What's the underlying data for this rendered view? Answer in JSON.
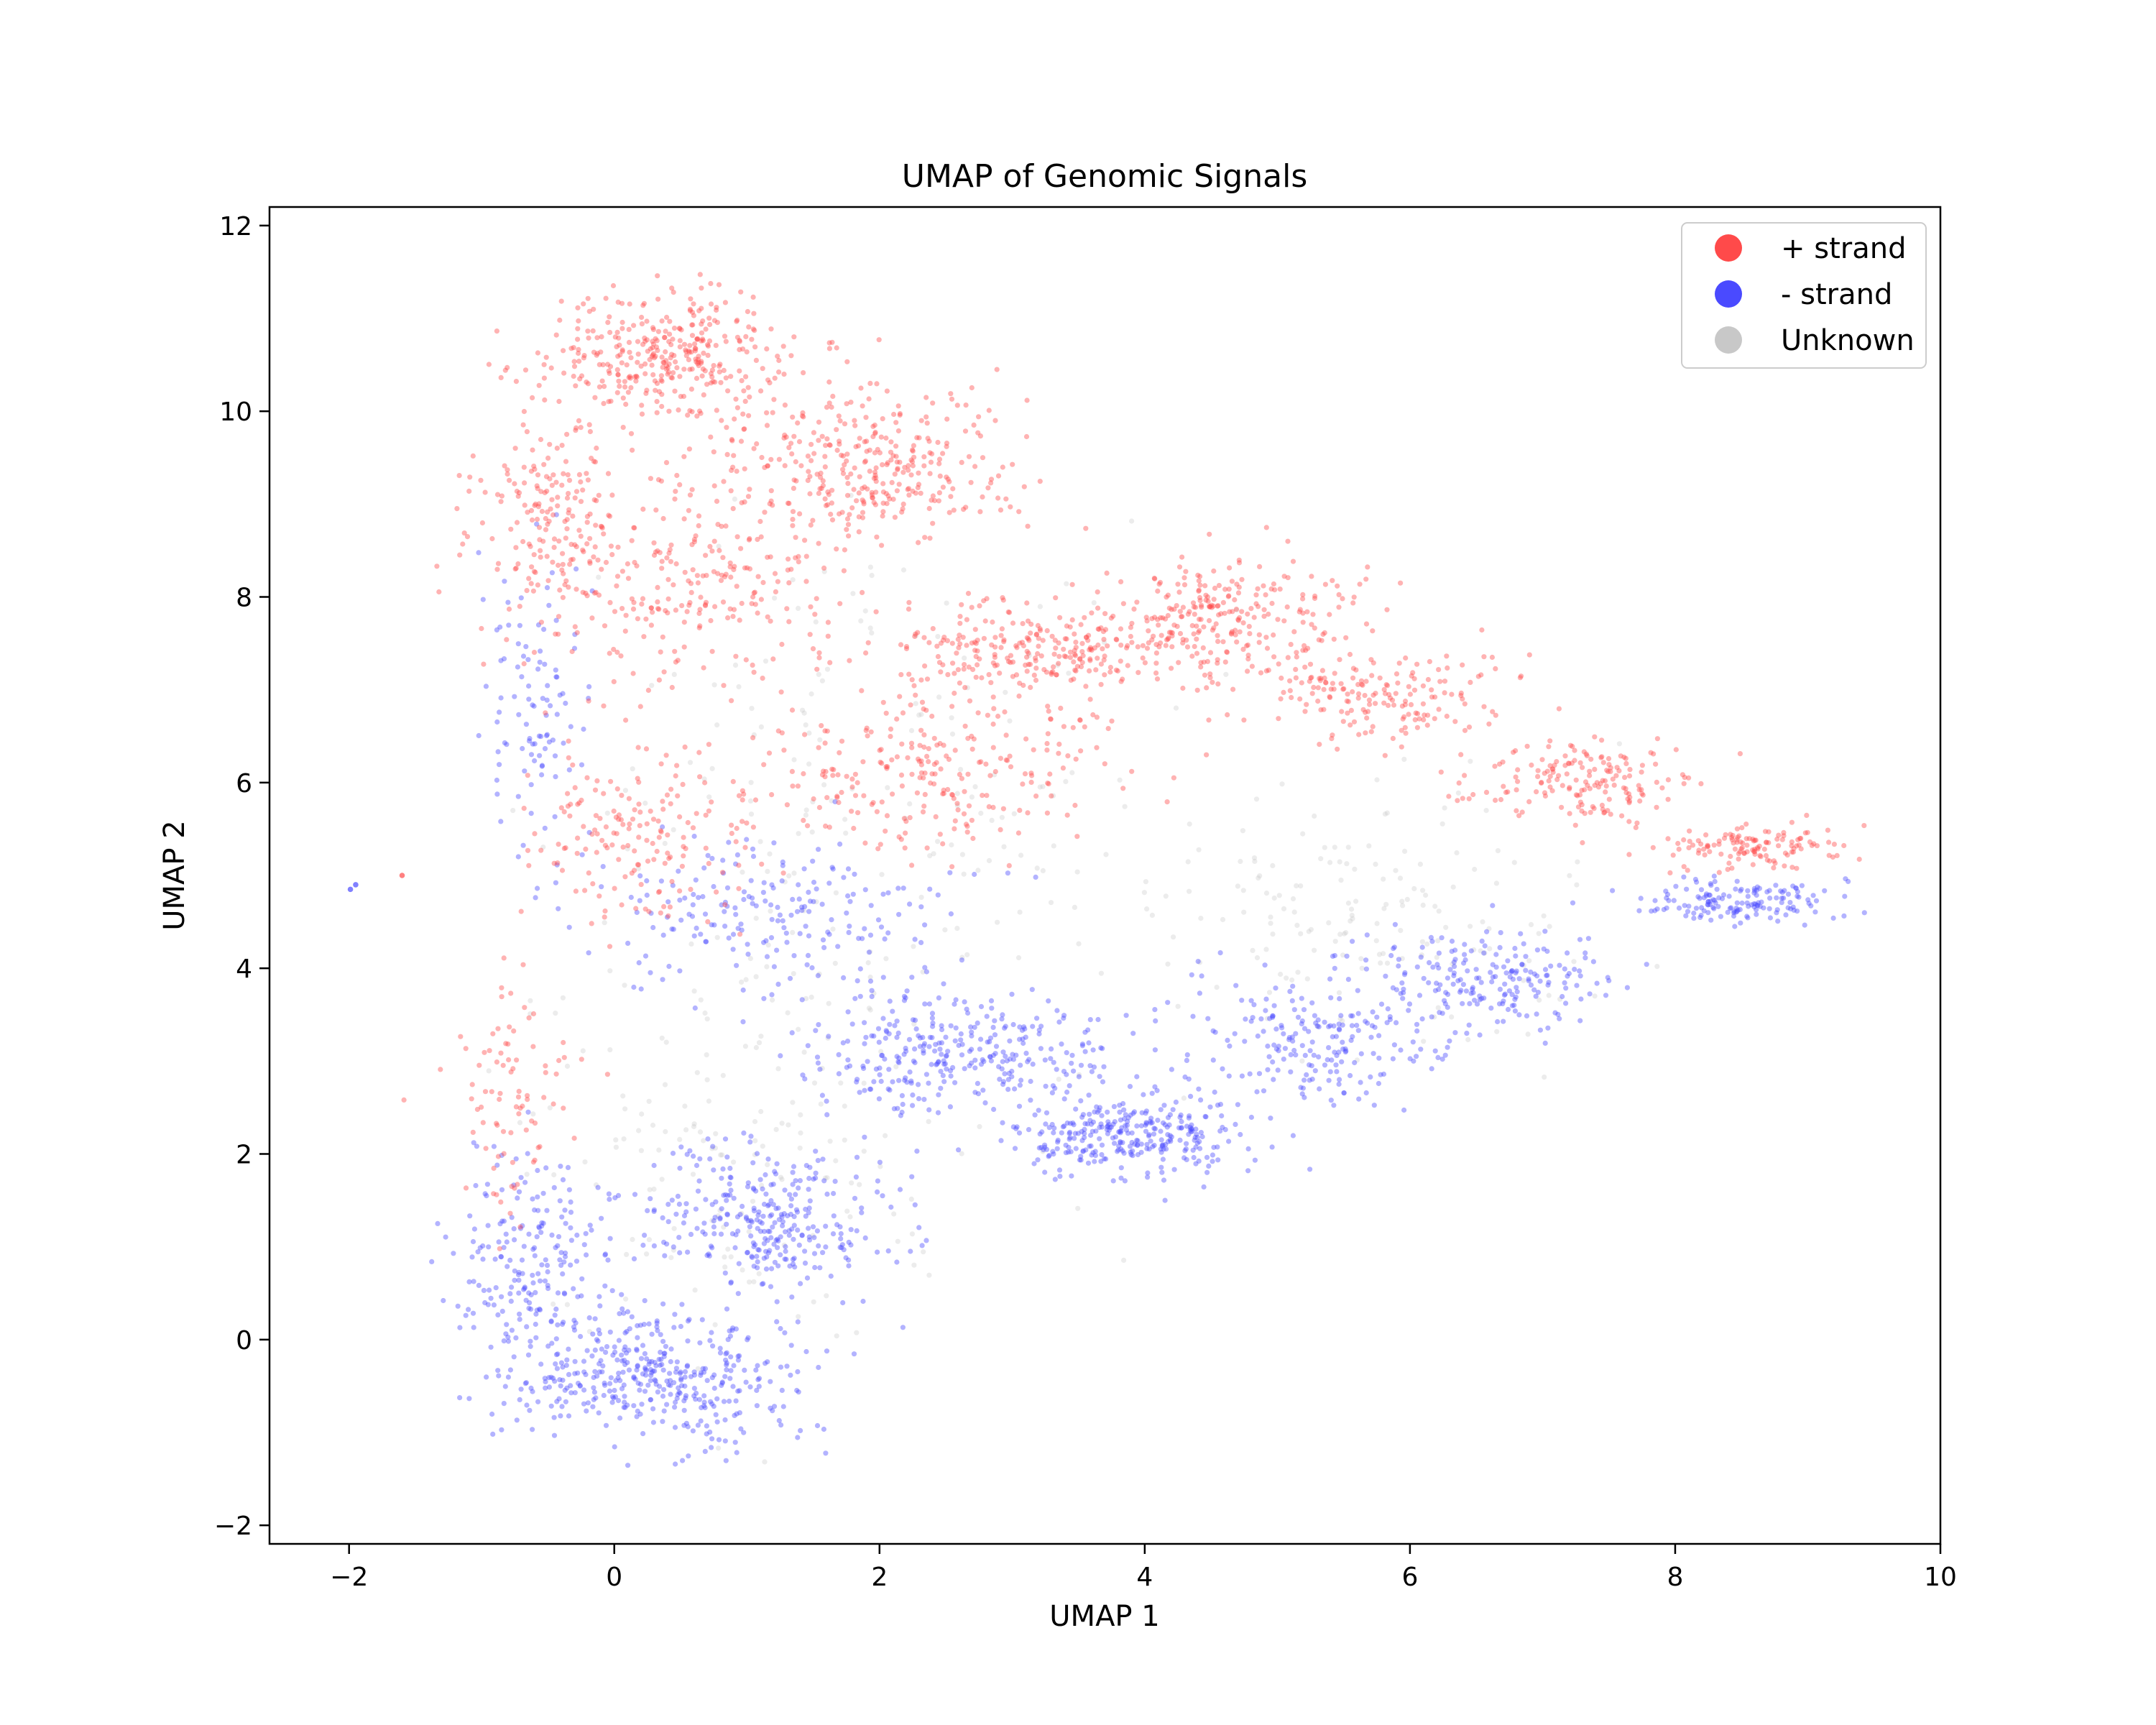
{
  "chart_data": {
    "type": "scatter",
    "title": "UMAP of Genomic Signals",
    "xlabel": "UMAP 1",
    "ylabel": "UMAP 2",
    "xlim": [
      -2.6,
      10.0
    ],
    "ylim": [
      -2.2,
      12.2
    ],
    "xticks": [
      -2,
      0,
      2,
      4,
      6,
      8,
      10
    ],
    "yticks": [
      -2,
      0,
      2,
      4,
      6,
      8,
      10,
      12
    ],
    "xtick_labels": [
      "−2",
      "0",
      "2",
      "4",
      "6",
      "8",
      "10"
    ],
    "ytick_labels": [
      "−2",
      "0",
      "2",
      "4",
      "6",
      "8",
      "10",
      "12"
    ],
    "grid": false,
    "legend_position": "top-right",
    "series": [
      {
        "name": "+ strand",
        "color": "#ff4a4a",
        "regions": [
          {
            "center": [
              0.4,
              10.6
            ],
            "spread": [
              0.8,
              0.55
            ],
            "weight": 4
          },
          {
            "center": [
              1.8,
              9.4
            ],
            "spread": [
              1.0,
              0.7
            ],
            "weight": 4
          },
          {
            "center": [
              -0.5,
              9.0
            ],
            "spread": [
              0.45,
              1.0
            ],
            "weight": 2
          },
          {
            "center": [
              0.6,
              8.2
            ],
            "spread": [
              1.1,
              1.0
            ],
            "weight": 3
          },
          {
            "center": [
              3.2,
              7.4
            ],
            "spread": [
              0.9,
              0.45
            ],
            "weight": 3
          },
          {
            "center": [
              4.6,
              7.8
            ],
            "spread": [
              0.8,
              0.5
            ],
            "weight": 3
          },
          {
            "center": [
              5.8,
              6.9
            ],
            "spread": [
              0.8,
              0.45
            ],
            "weight": 2
          },
          {
            "center": [
              7.3,
              6.0
            ],
            "spread": [
              0.7,
              0.35
            ],
            "weight": 2
          },
          {
            "center": [
              8.6,
              5.3
            ],
            "spread": [
              0.55,
              0.22
            ],
            "weight": 1.5
          },
          {
            "center": [
              2.4,
              6.2
            ],
            "spread": [
              1.2,
              0.8
            ],
            "weight": 3
          },
          {
            "center": [
              0.2,
              5.4
            ],
            "spread": [
              0.8,
              0.8
            ],
            "weight": 2
          },
          {
            "center": [
              -0.8,
              2.8
            ],
            "spread": [
              0.4,
              1.3
            ],
            "weight": 1
          }
        ]
      },
      {
        "name": "- strand",
        "color": "#4a4aff",
        "regions": [
          {
            "center": [
              0.3,
              -0.4
            ],
            "spread": [
              1.0,
              0.6
            ],
            "weight": 4
          },
          {
            "center": [
              1.2,
              1.3
            ],
            "spread": [
              0.8,
              0.7
            ],
            "weight": 3
          },
          {
            "center": [
              -0.6,
              0.8
            ],
            "spread": [
              0.5,
              1.0
            ],
            "weight": 2
          },
          {
            "center": [
              2.6,
              3.1
            ],
            "spread": [
              0.9,
              0.5
            ],
            "weight": 3
          },
          {
            "center": [
              3.9,
              2.2
            ],
            "spread": [
              0.8,
              0.35
            ],
            "weight": 3
          },
          {
            "center": [
              5.2,
              3.2
            ],
            "spread": [
              0.9,
              0.6
            ],
            "weight": 2
          },
          {
            "center": [
              6.6,
              3.9
            ],
            "spread": [
              0.8,
              0.45
            ],
            "weight": 2
          },
          {
            "center": [
              8.5,
              4.7
            ],
            "spread": [
              0.6,
              0.18
            ],
            "weight": 1.5
          },
          {
            "center": [
              1.2,
              4.6
            ],
            "spread": [
              1.1,
              0.7
            ],
            "weight": 2
          },
          {
            "center": [
              -0.6,
              6.8
            ],
            "spread": [
              0.35,
              1.4
            ],
            "weight": 1
          }
        ]
      },
      {
        "name": "Unknown",
        "color": "#c8c8c8",
        "regions": [
          {
            "center": [
              2.0,
              6.0
            ],
            "spread": [
              2.0,
              2.5
            ],
            "weight": 1
          },
          {
            "center": [
              1.0,
              2.0
            ],
            "spread": [
              1.5,
              2.0
            ],
            "weight": 1
          },
          {
            "center": [
              5.5,
              4.5
            ],
            "spread": [
              1.5,
              1.2
            ],
            "weight": 1
          }
        ]
      }
    ]
  }
}
